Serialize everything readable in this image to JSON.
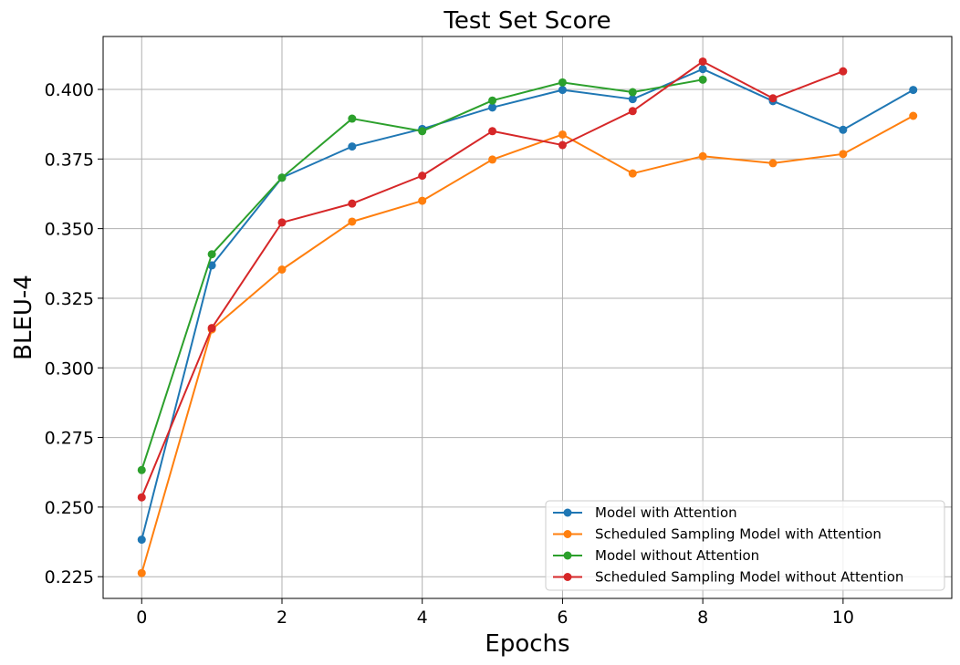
{
  "chart_data": {
    "type": "line",
    "title": "Test Set Score",
    "xlabel": "Epochs",
    "ylabel": "BLEU-4",
    "xlim": [
      -0.55,
      11.55
    ],
    "ylim": [
      0.2172,
      0.419
    ],
    "xticks": [
      0,
      2,
      4,
      6,
      8,
      10
    ],
    "xtick_labels": [
      "0",
      "2",
      "4",
      "6",
      "8",
      "10"
    ],
    "yticks": [
      0.225,
      0.25,
      0.275,
      0.3,
      0.325,
      0.35,
      0.375,
      0.4
    ],
    "ytick_labels": [
      "0.225",
      "0.250",
      "0.275",
      "0.300",
      "0.325",
      "0.350",
      "0.375",
      "0.400"
    ],
    "grid": true,
    "legend_position": "bottom-right",
    "series": [
      {
        "name": "Model with Attention",
        "color": "#1f77b4",
        "x": [
          0,
          1,
          2,
          3,
          4,
          5,
          6,
          7,
          8,
          9,
          10,
          11
        ],
        "y": [
          0.2383,
          0.3368,
          0.3683,
          0.3795,
          0.3858,
          0.3935,
          0.3998,
          0.3965,
          0.4073,
          0.3958,
          0.3855,
          0.3998
        ]
      },
      {
        "name": "Scheduled Sampling Model with Attention",
        "color": "#ff7f0e",
        "x": [
          0,
          1,
          2,
          3,
          4,
          5,
          6,
          7,
          8,
          9,
          10,
          11
        ],
        "y": [
          0.2263,
          0.3138,
          0.3353,
          0.3525,
          0.36,
          0.3748,
          0.3838,
          0.3698,
          0.376,
          0.3735,
          0.3768,
          0.3905
        ]
      },
      {
        "name": "Model without Attention",
        "color": "#2ca02c",
        "x": [
          0,
          1,
          2,
          3,
          4,
          5,
          6,
          7,
          8
        ],
        "y": [
          0.2633,
          0.3408,
          0.3683,
          0.3895,
          0.385,
          0.396,
          0.4025,
          0.399,
          0.4035
        ]
      },
      {
        "name": "Scheduled Sampling Model without Attention",
        "color": "#d62728",
        "x": [
          0,
          1,
          2,
          3,
          4,
          5,
          6,
          7,
          8,
          9,
          10
        ],
        "y": [
          0.2535,
          0.3143,
          0.3522,
          0.359,
          0.369,
          0.385,
          0.38,
          0.3922,
          0.41,
          0.3968,
          0.4065
        ]
      }
    ]
  }
}
